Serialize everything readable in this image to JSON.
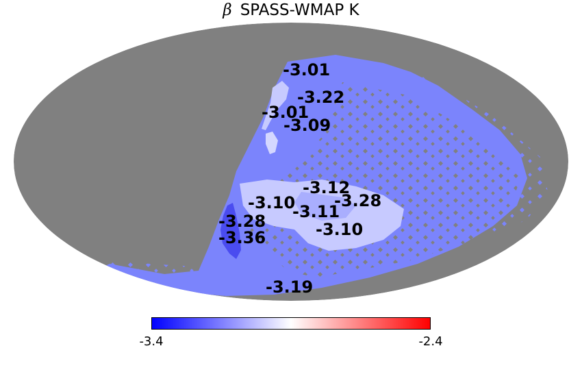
{
  "title": {
    "symbol": "β",
    "text": "SPASS-WMAP K"
  },
  "map": {
    "projection": "mollweide",
    "colors": {
      "masked": "#808080",
      "main_region": "#7b84fc",
      "light_region": "#c7caff",
      "dark_region": "#4a4cf0",
      "background": "#ffffff"
    }
  },
  "region_labels": [
    {
      "id": "r1",
      "value": "-3.01"
    },
    {
      "id": "r2",
      "value": "-3.22"
    },
    {
      "id": "r3",
      "value": "-3.01"
    },
    {
      "id": "r4",
      "value": "-3.09"
    },
    {
      "id": "r5",
      "value": "-3.12"
    },
    {
      "id": "r6",
      "value": "-3.28"
    },
    {
      "id": "r7",
      "value": "-3.10"
    },
    {
      "id": "r8",
      "value": "-3.11"
    },
    {
      "id": "r9",
      "value": "-3.28"
    },
    {
      "id": "r10",
      "value": "-3.10"
    },
    {
      "id": "r11",
      "value": "-3.36"
    },
    {
      "id": "r12",
      "value": "-3.19"
    }
  ],
  "colorbar": {
    "min_label": "-3.4",
    "max_label": "-2.4",
    "min_value": -3.4,
    "max_value": -2.4,
    "colors": [
      "#0000ff",
      "#ffffff",
      "#ff0000"
    ]
  }
}
